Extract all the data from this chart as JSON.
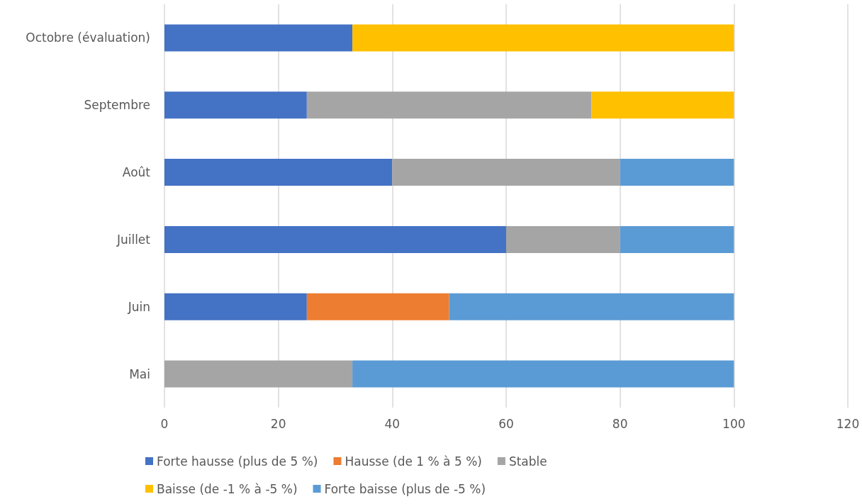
{
  "chart_data": {
    "type": "bar",
    "orientation": "horizontal",
    "stacked": true,
    "categories": [
      "Octobre (évaluation)",
      "Septembre",
      "Août",
      "Juillet",
      "Juin",
      "Mai"
    ],
    "series": [
      {
        "name": "Forte hausse (plus de 5 %)",
        "color": "#4472c4",
        "values": [
          33,
          25,
          40,
          60,
          25,
          0
        ]
      },
      {
        "name": "Hausse (de 1 % à 5 %)",
        "color": "#ed7d31",
        "values": [
          0,
          0,
          0,
          0,
          25,
          0
        ]
      },
      {
        "name": "Stable",
        "color": "#a5a5a5",
        "values": [
          0,
          50,
          40,
          20,
          0,
          33
        ]
      },
      {
        "name": "Baisse (de -1 % à -5 %)",
        "color": "#ffc000",
        "values": [
          67,
          25,
          0,
          0,
          0,
          0
        ]
      },
      {
        "name": "Forte baisse (plus de -5 %)",
        "color": "#5b9bd5",
        "values": [
          0,
          0,
          20,
          20,
          50,
          67
        ]
      }
    ],
    "xlim": [
      0,
      120
    ],
    "xticks": [
      0,
      20,
      40,
      60,
      80,
      100,
      120
    ],
    "grid": "x",
    "legend": "bottom"
  }
}
